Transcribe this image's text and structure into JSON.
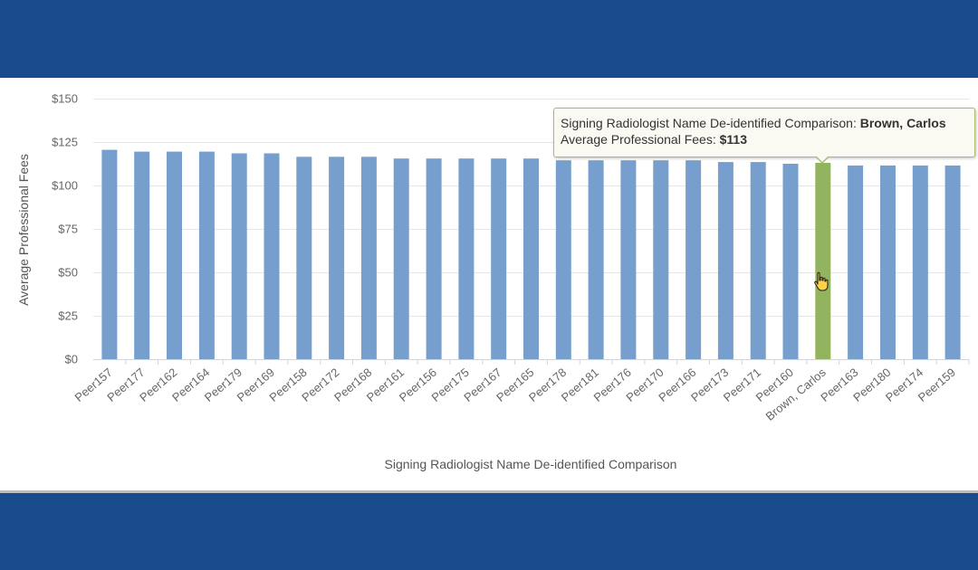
{
  "colors": {
    "banner": "#1a4b8c",
    "bar": "#769fcd",
    "highlight_bar": "#93b45e",
    "grid": "#e6e6e6",
    "tooltip_border": "#a3bd73"
  },
  "chart_data": {
    "type": "bar",
    "xlabel": "Signing Radiologist Name De-identified Comparison",
    "ylabel": "Average Professional Fees",
    "ylim": [
      0,
      150
    ],
    "yticks": [
      0,
      25,
      50,
      75,
      100,
      125,
      150
    ],
    "ytick_labels": [
      "$0",
      "$25",
      "$50",
      "$75",
      "$100",
      "$125",
      "$150"
    ],
    "grid": true,
    "categories": [
      "Peer157",
      "Peer177",
      "Peer162",
      "Peer164",
      "Peer179",
      "Peer169",
      "Peer158",
      "Peer172",
      "Peer168",
      "Peer161",
      "Peer156",
      "Peer175",
      "Peer167",
      "Peer165",
      "Peer178",
      "Peer181",
      "Peer176",
      "Peer170",
      "Peer166",
      "Peer173",
      "Peer171",
      "Peer160",
      "Brown, Carlos",
      "Peer163",
      "Peer180",
      "Peer174",
      "Peer159"
    ],
    "values": [
      120.5,
      119.5,
      119.5,
      119.5,
      118.5,
      118.5,
      116.5,
      116.5,
      116.5,
      115.5,
      115.5,
      115.5,
      115.5,
      115.5,
      114.5,
      114.5,
      114.5,
      114.5,
      114.5,
      113.5,
      113.5,
      112.5,
      113,
      111.5,
      111.5,
      111.5,
      111.5
    ],
    "highlighted": "Brown, Carlos"
  },
  "tooltip": {
    "line1_label": "Signing Radiologist Name De-identified Comparison: ",
    "line1_value": "Brown, Carlos",
    "line2_label": "Average Professional Fees: ",
    "line2_value": "$113"
  },
  "icons": {
    "cursor": "hand-pointer-icon"
  }
}
